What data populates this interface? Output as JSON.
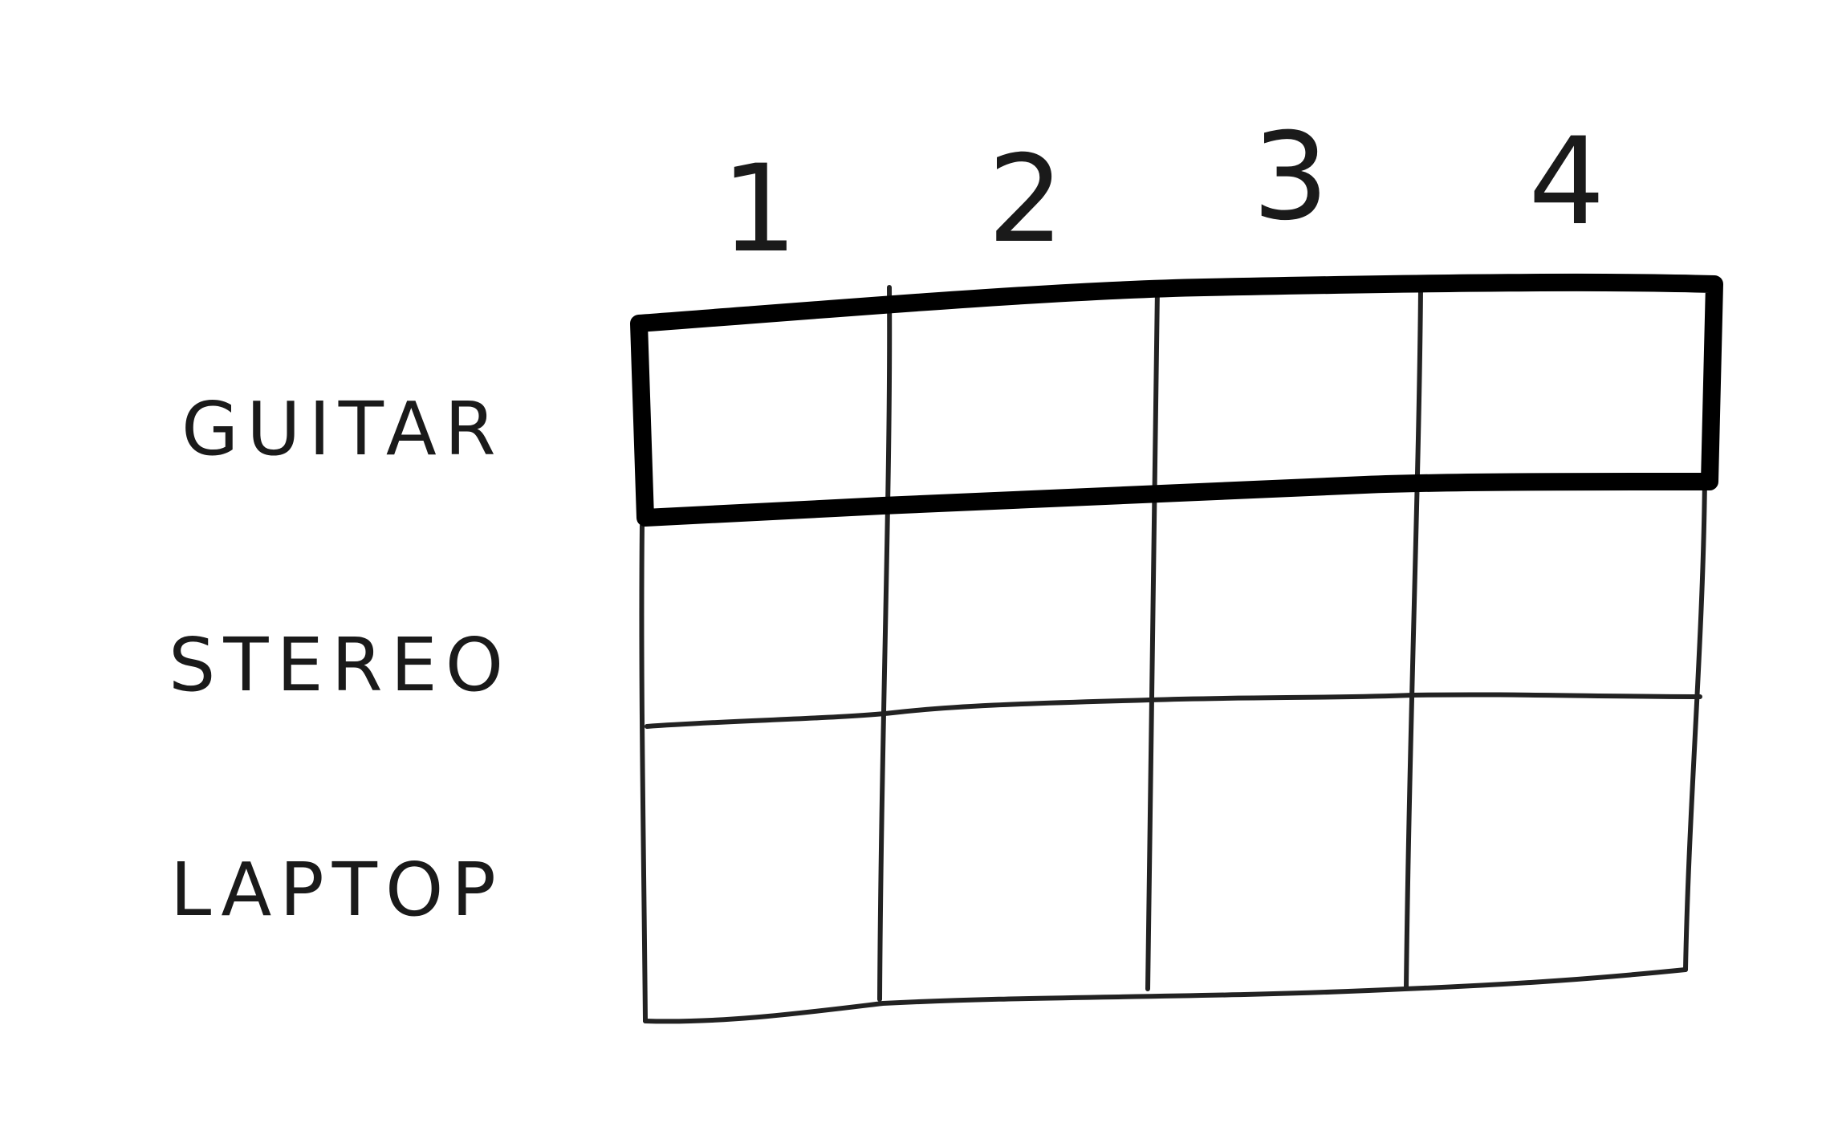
{
  "grid": {
    "column_labels": [
      "1",
      "2",
      "3",
      "4"
    ],
    "row_labels": [
      "GUITAR",
      "STEREO",
      "LAPTOP"
    ],
    "highlighted_row": "GUITAR",
    "line_color": "#222222",
    "highlight_color": "#000000"
  }
}
